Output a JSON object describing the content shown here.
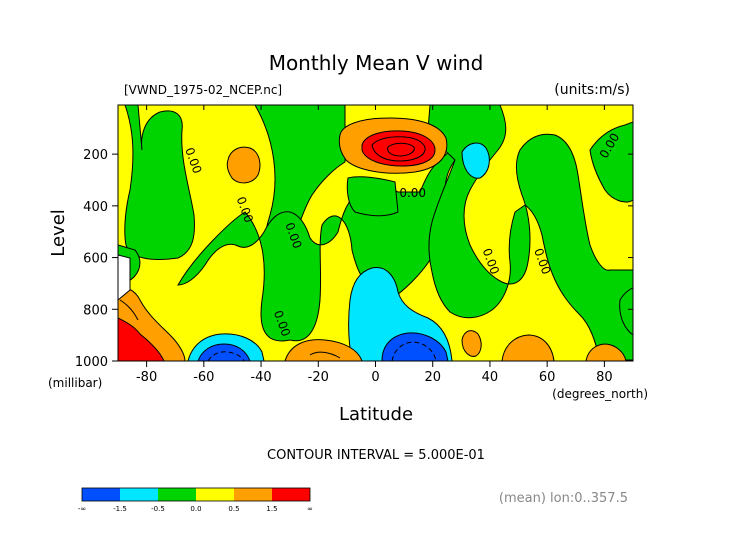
{
  "chart_data": {
    "type": "heatmap",
    "title": "Monthly Mean V wind",
    "dataset_label": "[VWND_1975-02_NCEP.nc]",
    "units_label": "(units:m/s)",
    "xlabel": "Latitude",
    "x_units": "(degrees_north)",
    "ylabel": "Level",
    "y_units": "(millibar)",
    "xlim": [
      -90,
      90
    ],
    "ylim": [
      1000,
      10
    ],
    "x_ticks": [
      -80,
      -60,
      -40,
      -20,
      0,
      20,
      40,
      60,
      80
    ],
    "y_ticks": [
      200,
      400,
      600,
      800,
      1000
    ],
    "contour_interval_text": "CONTOUR INTERVAL = 5.000E-01",
    "contour_labels": [
      {
        "text": "0.00",
        "lat": -65,
        "lev": 230
      },
      {
        "text": "0.00",
        "lat": -47,
        "lev": 420
      },
      {
        "text": "0.00",
        "lat": -30,
        "lev": 520
      },
      {
        "text": "0.00",
        "lat": -34,
        "lev": 860
      },
      {
        "text": "0.00",
        "lat": 13,
        "lev": 365
      },
      {
        "text": "0.00",
        "lat": 39,
        "lev": 620
      },
      {
        "text": "0.00",
        "lat": 57,
        "lev": 620
      },
      {
        "text": "0.00",
        "lat": 83,
        "lev": 175
      }
    ],
    "colorbar": {
      "colors": [
        "#0050ff",
        "#00e6ff",
        "#00d400",
        "#ffff00",
        "#ffa000",
        "#ff0000"
      ],
      "tick_labels": [
        "-∞",
        "-1.5",
        "-0.5",
        "0.0",
        "0.5",
        "1.5",
        "∞"
      ]
    },
    "note": "(mean) lon:0..357.5"
  }
}
